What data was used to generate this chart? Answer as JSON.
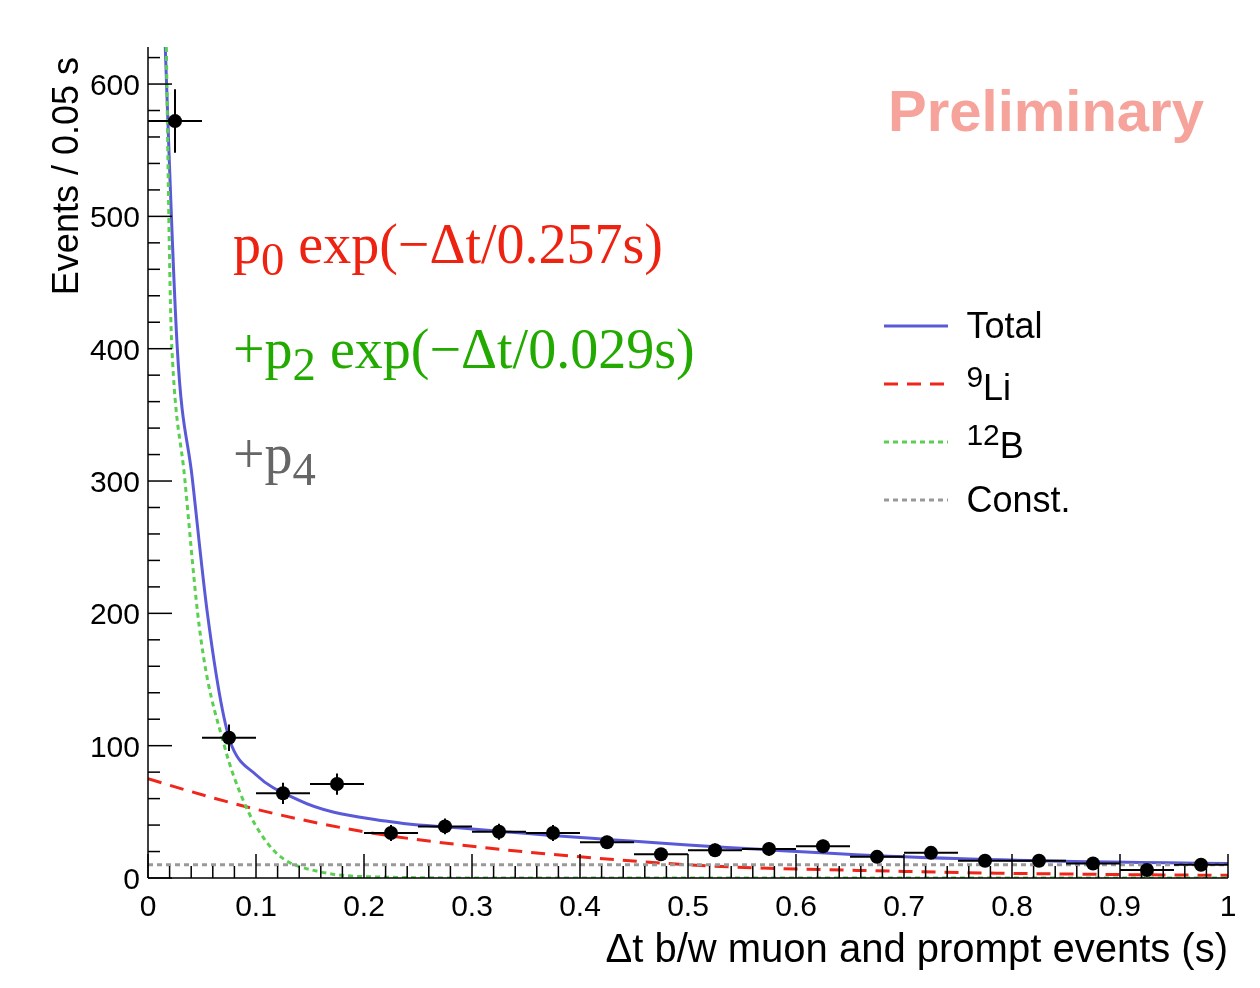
{
  "chart_data": {
    "type": "line",
    "xlabel": "Δt b/w muon and prompt events (s)",
    "ylabel": "Events / 0.05 s",
    "xlim": [
      0,
      1
    ],
    "ylim": [
      0,
      628
    ],
    "xticks": [
      0,
      {
        "value": 0.02,
        "label": null
      },
      {
        "value": 0.04,
        "label": null
      },
      {
        "value": 0.06,
        "label": null
      },
      {
        "value": 0.08,
        "label": null
      },
      0.1,
      {
        "value": 0.12,
        "label": null
      },
      {
        "value": 0.14,
        "label": null
      },
      {
        "value": 0.16,
        "label": null
      },
      {
        "value": 0.18,
        "label": null
      },
      0.2,
      {
        "value": 0.22,
        "label": null
      },
      {
        "value": 0.24,
        "label": null
      },
      {
        "value": 0.26,
        "label": null
      },
      {
        "value": 0.28,
        "label": null
      },
      0.3,
      {
        "value": 0.32,
        "label": null
      },
      {
        "value": 0.34,
        "label": null
      },
      {
        "value": 0.36,
        "label": null
      },
      {
        "value": 0.38,
        "label": null
      },
      0.4,
      {
        "value": 0.42,
        "label": null
      },
      {
        "value": 0.44,
        "label": null
      },
      {
        "value": 0.46,
        "label": null
      },
      {
        "value": 0.48,
        "label": null
      },
      0.5,
      {
        "value": 0.52,
        "label": null
      },
      {
        "value": 0.54,
        "label": null
      },
      {
        "value": 0.56,
        "label": null
      },
      {
        "value": 0.58,
        "label": null
      },
      0.6,
      {
        "value": 0.62,
        "label": null
      },
      {
        "value": 0.64,
        "label": null
      },
      {
        "value": 0.66,
        "label": null
      },
      {
        "value": 0.68,
        "label": null
      },
      0.7,
      {
        "value": 0.72,
        "label": null
      },
      {
        "value": 0.74,
        "label": null
      },
      {
        "value": 0.76,
        "label": null
      },
      {
        "value": 0.78,
        "label": null
      },
      0.8,
      {
        "value": 0.82,
        "label": null
      },
      {
        "value": 0.84,
        "label": null
      },
      {
        "value": 0.86,
        "label": null
      },
      {
        "value": 0.88,
        "label": null
      },
      0.9,
      {
        "value": 0.92,
        "label": null
      },
      {
        "value": 0.94,
        "label": null
      },
      {
        "value": 0.96,
        "label": null
      },
      {
        "value": 0.98,
        "label": null
      },
      1
    ],
    "yticks": [
      0,
      {
        "value": 20,
        "label": null
      },
      {
        "value": 40,
        "label": null
      },
      {
        "value": 60,
        "label": null
      },
      {
        "value": 80,
        "label": null
      },
      100,
      {
        "value": 120,
        "label": null
      },
      {
        "value": 140,
        "label": null
      },
      {
        "value": 160,
        "label": null
      },
      {
        "value": 180,
        "label": null
      },
      200,
      {
        "value": 220,
        "label": null
      },
      {
        "value": 240,
        "label": null
      },
      {
        "value": 260,
        "label": null
      },
      {
        "value": 280,
        "label": null
      },
      300,
      {
        "value": 320,
        "label": null
      },
      {
        "value": 340,
        "label": null
      },
      {
        "value": 360,
        "label": null
      },
      {
        "value": 380,
        "label": null
      },
      400,
      {
        "value": 420,
        "label": null
      },
      {
        "value": 440,
        "label": null
      },
      {
        "value": 460,
        "label": null
      },
      {
        "value": 480,
        "label": null
      },
      500,
      {
        "value": 520,
        "label": null
      },
      {
        "value": 540,
        "label": null
      },
      {
        "value": 560,
        "label": null
      },
      {
        "value": 580,
        "label": null
      },
      600,
      {
        "value": 620,
        "label": null
      }
    ],
    "legend": "top right",
    "annotations": [
      "Preliminary",
      "p$_{0}$ exp(−Δt/0.257s)",
      "+p$_{2}$ exp(−Δt/0.029s)",
      "+p$_{4}$"
    ],
    "series": [
      {
        "type": "scatter",
        "marker": "circle",
        "color": "#000000",
        "x": [
          0.025,
          0.075,
          0.125,
          0.175,
          0.225,
          0.275,
          0.325,
          0.375,
          0.425,
          0.475,
          0.525,
          0.575,
          0.625,
          0.675,
          0.725,
          0.775,
          0.825,
          0.875,
          0.925,
          0.975
        ],
        "values": [
          572,
          106,
          64,
          71,
          34,
          39,
          35,
          34,
          27,
          18,
          21,
          22,
          24,
          16,
          19,
          13,
          13,
          11,
          6,
          10
        ],
        "errors": [
          24,
          10,
          8,
          8,
          6,
          6,
          6,
          6,
          5,
          4,
          5,
          5,
          5,
          4,
          4,
          4,
          4,
          3,
          2,
          3
        ],
        "xerrors": [
          0.025,
          0.025,
          0.025,
          0.025,
          0.025,
          0.025,
          0.025,
          0.025,
          0.025,
          0.025,
          0.025,
          0.025,
          0.025,
          0.025,
          0.025,
          0.025,
          0.025,
          0.025,
          0.025,
          0.025
        ]
      },
      {
        "name": "Total",
        "color": "#5a5ad8",
        "line_style": "solid",
        "x": [
          0.016,
          0.027,
          0.041,
          0.055,
          0.078,
          0.1,
          0.139,
          0.22,
          0.3,
          0.5,
          0.7,
          1
        ],
        "values": [
          628,
          402,
          302,
          200,
          99,
          78,
          59,
          43,
          37,
          25,
          16,
          11
        ]
      },
      {
        "name": "$^{9}$Li",
        "color": "#f0261a",
        "line_style": "dashed",
        "x": [
          0,
          0.1,
          0.2,
          0.3,
          0.4,
          0.5,
          0.7,
          1
        ],
        "values": [
          75,
          52,
          35,
          24,
          16,
          10,
          5,
          2
        ]
      },
      {
        "name": "$^{12}$B",
        "color": "#5ad050",
        "line_style": "dotted",
        "x": [
          0.017,
          0.022,
          0.034,
          0.046,
          0.071,
          0.088,
          0.11,
          0.139,
          0.2,
          0.3,
          1
        ],
        "values": [
          628,
          402,
          302,
          200,
          99,
          59,
          27,
          9,
          1,
          0,
          0
        ]
      },
      {
        "name": "Const.",
        "color": "#999999",
        "line_style": "dotted",
        "x": [
          0,
          1
        ],
        "values": [
          10,
          10
        ]
      }
    ]
  }
}
